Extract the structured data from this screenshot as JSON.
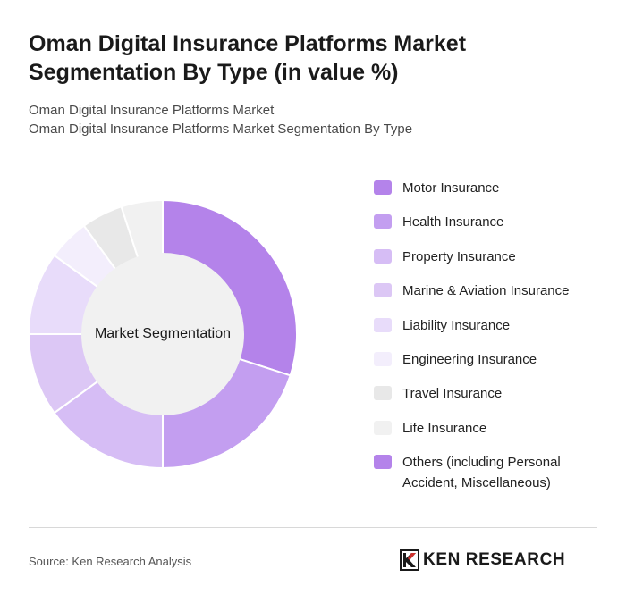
{
  "header": {
    "title_line1": "Oman Digital Insurance Platforms Market",
    "title_line2": "Segmentation By Type (in value %)",
    "subtitle_line1": "Oman Digital Insurance Platforms Market",
    "subtitle_line2": "Oman Digital Insurance Platforms Market Segmentation By Type"
  },
  "chart_data": {
    "type": "pie",
    "style": "donut",
    "center_label": "Market Segmentation",
    "legend_position": "right",
    "categories": [
      "Motor Insurance",
      "Health Insurance",
      "Property Insurance",
      "Marine & Aviation Insurance",
      "Liability Insurance",
      "Engineering Insurance",
      "Travel Insurance",
      "Life Insurance",
      "Others (including Personal Accident, Miscellaneous)"
    ],
    "values": [
      30,
      20,
      15,
      10,
      10,
      5,
      5,
      5,
      0
    ],
    "colors": [
      "#b483ea",
      "#c39ef0",
      "#d6bdf5",
      "#dcc7f5",
      "#e8dcfa",
      "#f3eefc",
      "#e8e8e8",
      "#f1f1f1",
      "#b483ea"
    ],
    "center_fill": "#f1f1f1"
  },
  "footer": {
    "source": "Source: Ken Research Analysis",
    "brand": "KEN RESEARCH"
  }
}
